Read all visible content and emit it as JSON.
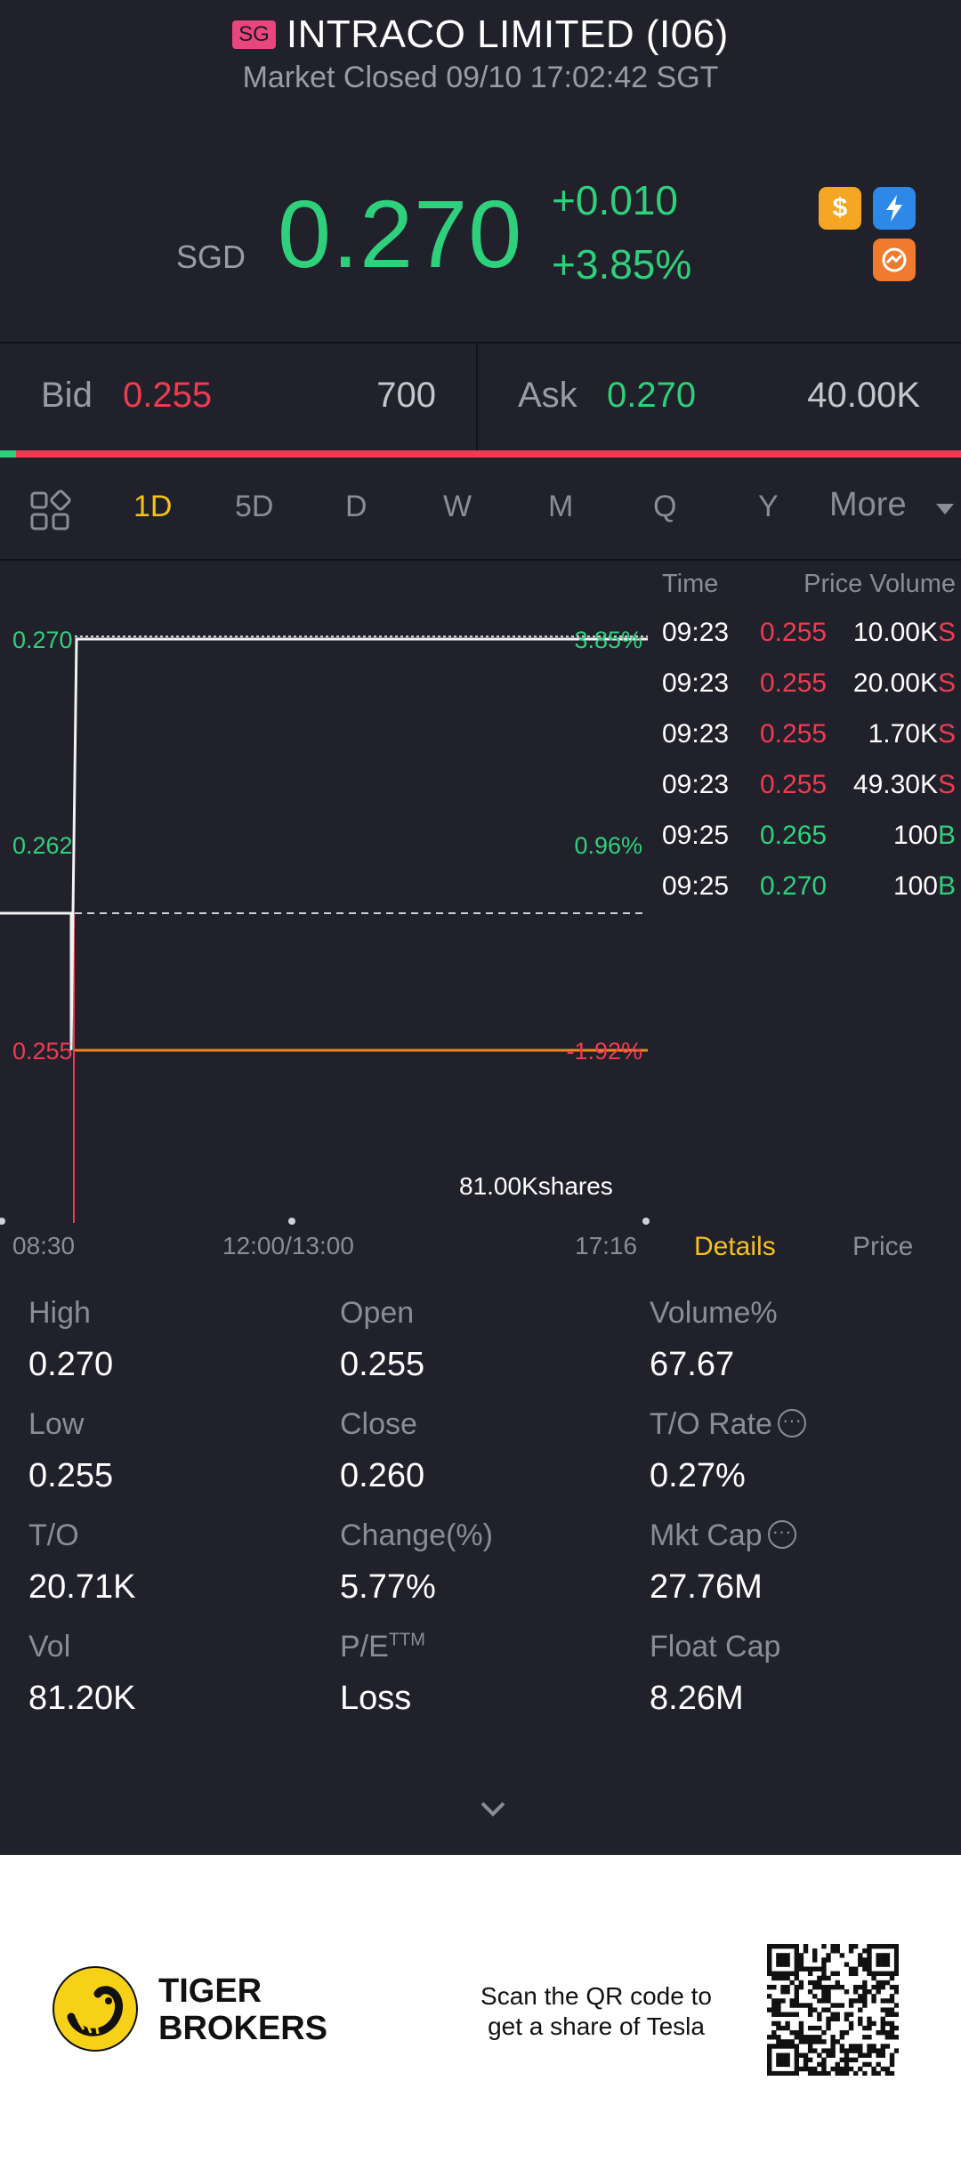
{
  "header": {
    "market_badge": "SG",
    "title": "INTRACO LIMITED (I06)",
    "status": "Market Closed 09/10 17:02:42 SGT"
  },
  "quote": {
    "currency": "SGD",
    "price": "0.270",
    "change_abs": "+0.010",
    "change_pct": "+3.85%",
    "up_color": "#2fd07c",
    "down_color": "#ef3b52"
  },
  "toolbar_icons": [
    "dollar-icon",
    "flash-icon",
    "swap-icon"
  ],
  "bid_ask": {
    "bid_label": "Bid",
    "bid_price": "0.255",
    "bid_size": "700",
    "ask_label": "Ask",
    "ask_price": "0.270",
    "ask_size": "40.00K",
    "bid_ratio": 0.017
  },
  "periods": {
    "tabs": [
      "1D",
      "5D",
      "D",
      "W",
      "M",
      "Q",
      "Y"
    ],
    "more": "More",
    "active": "1D"
  },
  "chart_data": {
    "type": "line",
    "y_labels": [
      {
        "price": "0.270",
        "pct": "3.85%"
      },
      {
        "price": "0.262",
        "pct": "0.96%"
      },
      {
        "price": "0.255",
        "pct": "-1.92%"
      }
    ],
    "ylim": [
      0.255,
      0.27
    ],
    "prev_close": 0.26,
    "avg_price": 0.255,
    "x_labels": [
      "08:30",
      "12:00/13:00",
      "17:16"
    ],
    "series": [
      {
        "x": [
          "08:30",
          "08:30",
          "08:35",
          "08:35",
          "17:16"
        ],
        "values": [
          0.26,
          0.26,
          0.255,
          0.27,
          0.27
        ]
      }
    ],
    "volume_label": "81.00Kshares"
  },
  "trades": {
    "header_time": "Time",
    "header_price_volume": "Price Volume",
    "rows": [
      {
        "time": "09:23",
        "price": "0.255",
        "volume": "10.00K",
        "side": "S"
      },
      {
        "time": "09:23",
        "price": "0.255",
        "volume": "20.00K",
        "side": "S"
      },
      {
        "time": "09:23",
        "price": "0.255",
        "volume": "1.70K",
        "side": "S"
      },
      {
        "time": "09:23",
        "price": "0.255",
        "volume": "49.30K",
        "side": "S"
      },
      {
        "time": "09:25",
        "price": "0.265",
        "volume": "100",
        "side": "B"
      },
      {
        "time": "09:25",
        "price": "0.270",
        "volume": "100",
        "side": "B"
      }
    ],
    "tab_details": "Details",
    "tab_price": "Price"
  },
  "stats": {
    "high": {
      "label": "High",
      "value": "0.270"
    },
    "open": {
      "label": "Open",
      "value": "0.255"
    },
    "volume_pct": {
      "label": "Volume%",
      "value": "67.67"
    },
    "low": {
      "label": "Low",
      "value": "0.255"
    },
    "close": {
      "label": "Close",
      "value": "0.260"
    },
    "to_rate": {
      "label": "T/O Rate",
      "value": "0.27%"
    },
    "turnover": {
      "label": "T/O",
      "value": "20.71K"
    },
    "change": {
      "label": "Change(%)",
      "value": "5.77%"
    },
    "mkt_cap": {
      "label": "Mkt Cap",
      "value": "27.76M"
    },
    "vol": {
      "label": "Vol",
      "value": "81.20K"
    },
    "pe": {
      "label": "P/E",
      "sup": "TTM",
      "value": "Loss"
    },
    "float_cap": {
      "label": "Float Cap",
      "value": "8.26M"
    }
  },
  "footer": {
    "brand_line1": "TIGER",
    "brand_line2": "BROKERS",
    "scan_line1": "Scan the QR code to",
    "scan_line2": "get a share of Tesla"
  }
}
